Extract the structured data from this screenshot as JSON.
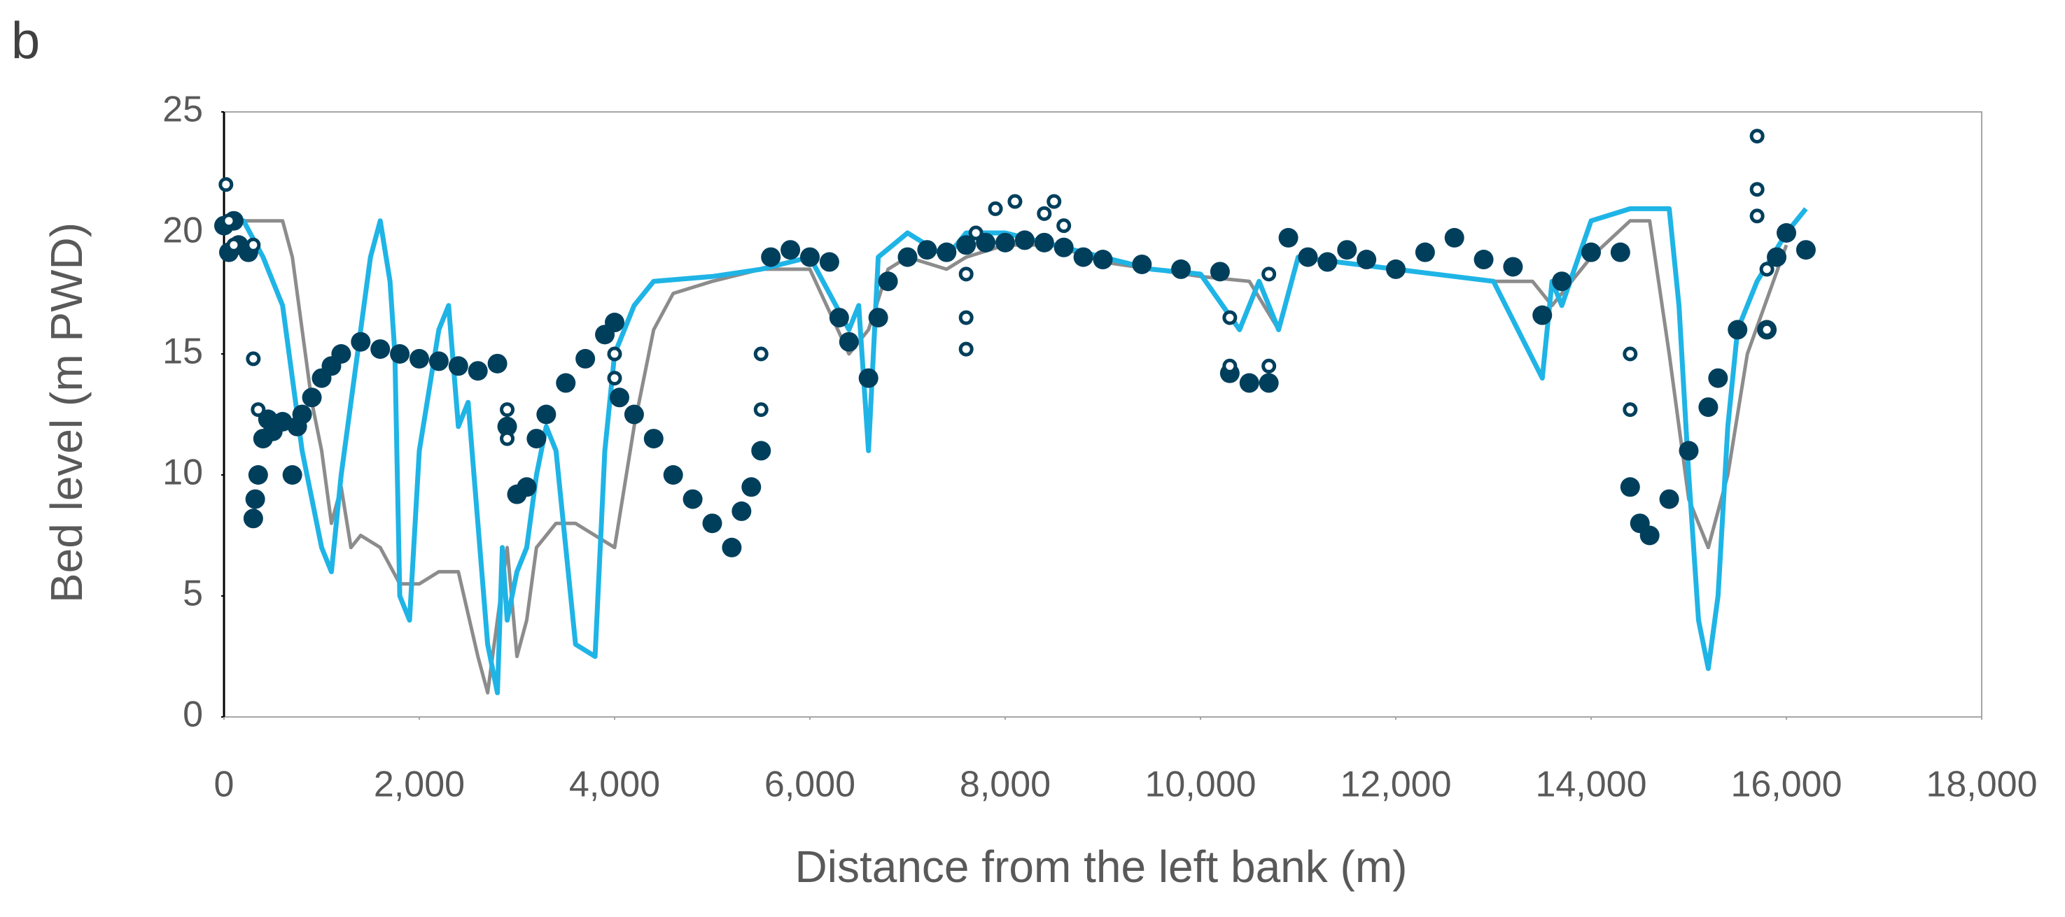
{
  "chart_data": {
    "type": "line",
    "panel_label": "b",
    "xlabel": "Distance from the left bank (m)",
    "ylabel": "Bed level (m PWD)",
    "xlim": [
      0,
      18000
    ],
    "ylim": [
      0,
      25
    ],
    "xticks": [
      0,
      {
        "value": 2000,
        "label": "2,000"
      },
      {
        "value": 4000,
        "label": "4,000"
      },
      {
        "value": 6000,
        "label": "6,000"
      },
      {
        "value": 8000,
        "label": "8,000"
      },
      {
        "value": 10000,
        "label": "10,000"
      },
      {
        "value": 12000,
        "label": "12,000"
      },
      {
        "value": 14000,
        "label": "14,000"
      },
      {
        "value": 16000,
        "label": "16,000"
      },
      {
        "value": 18000,
        "label": "18,000"
      }
    ],
    "yticks": [
      0,
      5,
      10,
      15,
      20,
      25
    ],
    "series": [
      {
        "color": "#8c8c8c",
        "mode": "line",
        "x": [
          0,
          200,
          400,
          600,
          700,
          800,
          900,
          1000,
          1100,
          1200,
          1300,
          1400,
          1600,
          1800,
          2000,
          2200,
          2400,
          2600,
          2700,
          2800,
          2900,
          3000,
          3100,
          3200,
          3400,
          3600,
          3800,
          4000,
          4200,
          4400,
          4600,
          5000,
          5500,
          6000,
          6400,
          6600,
          6800,
          7000,
          7400,
          7600,
          8000,
          8500,
          9000,
          9500,
          10000,
          10500,
          10800,
          11000,
          12000,
          13000,
          13400,
          13600,
          14000,
          14400,
          14600,
          14800,
          15000,
          15200,
          15400,
          15600,
          16000
        ],
        "values": [
          20.5,
          20.5,
          20.5,
          20.5,
          19,
          16,
          13,
          11,
          8,
          9.5,
          7,
          7.5,
          7,
          5.5,
          5.5,
          6,
          6,
          2.5,
          1,
          4,
          7,
          2.5,
          4,
          7,
          8,
          8,
          7.5,
          7,
          12,
          16,
          17.5,
          18,
          18.5,
          18.5,
          15,
          16,
          18.5,
          19,
          18.5,
          19,
          19.5,
          19.5,
          18.8,
          18.5,
          18.2,
          18,
          16,
          19,
          18.5,
          18,
          18,
          17,
          19,
          20.5,
          20.5,
          15,
          9,
          7,
          10,
          15,
          19.5
        ]
      },
      {
        "color": "#1fb4e6",
        "mode": "line",
        "x": [
          0,
          200,
          400,
          600,
          700,
          800,
          900,
          1000,
          1100,
          1200,
          1300,
          1400,
          1500,
          1600,
          1700,
          1750,
          1800,
          1900,
          2000,
          2200,
          2300,
          2400,
          2500,
          2600,
          2700,
          2800,
          2850,
          2900,
          3000,
          3100,
          3200,
          3300,
          3400,
          3500,
          3600,
          3800,
          3900,
          4000,
          4200,
          4400,
          5000,
          5500,
          6000,
          6400,
          6500,
          6600,
          6700,
          7000,
          7400,
          7600,
          8000,
          8500,
          9000,
          9500,
          10000,
          10400,
          10600,
          10800,
          11000,
          12000,
          13000,
          13500,
          13600,
          13700,
          14000,
          14400,
          14600,
          14800,
          14900,
          15000,
          15100,
          15200,
          15300,
          15400,
          15500,
          15600,
          15700,
          16000,
          16200
        ],
        "values": [
          20.5,
          20.5,
          19,
          17,
          14,
          11,
          9,
          7,
          6,
          10,
          13,
          16,
          19,
          20.5,
          18,
          15,
          5,
          4,
          11,
          16,
          17,
          12,
          13,
          8,
          3,
          1,
          7,
          4,
          6,
          7,
          10,
          12,
          11,
          7,
          3,
          2.5,
          11,
          15,
          17,
          18,
          18.2,
          18.5,
          19,
          16,
          17,
          11,
          19,
          20,
          19,
          20,
          20,
          19.5,
          19,
          18.5,
          18.3,
          16,
          18,
          16,
          19,
          18.5,
          18,
          14,
          18,
          17,
          20.5,
          21,
          21,
          21,
          17,
          10,
          4,
          2,
          5,
          12,
          16,
          17,
          18,
          20,
          21
        ]
      },
      {
        "color": "#003f5c",
        "mode": "filled",
        "x": [
          0,
          50,
          100,
          150,
          250,
          300,
          320,
          350,
          400,
          450,
          500,
          600,
          700,
          750,
          800,
          900,
          1000,
          1100,
          1200,
          1400,
          1600,
          1800,
          2000,
          2200,
          2400,
          2600,
          2800,
          2900,
          3000,
          3100,
          3200,
          3300,
          3500,
          3700,
          3900,
          4000,
          4050,
          4200,
          4400,
          4600,
          4800,
          5000,
          5200,
          5300,
          5400,
          5500,
          5600,
          5800,
          6000,
          6200,
          6300,
          6400,
          6600,
          6700,
          6800,
          7000,
          7200,
          7400,
          7600,
          7800,
          8000,
          8200,
          8400,
          8600,
          8800,
          9000,
          9400,
          9800,
          10200,
          10300,
          10500,
          10700,
          10900,
          11100,
          11300,
          11500,
          11700,
          12000,
          12300,
          12600,
          12900,
          13200,
          13500,
          13700,
          14000,
          14300,
          14400,
          14500,
          14600,
          14800,
          15000,
          15200,
          15300,
          15500,
          15800,
          15900,
          16000,
          16200
        ],
        "values": [
          20.3,
          19.2,
          20.5,
          19.5,
          19.2,
          8.2,
          9,
          10,
          11.5,
          12.3,
          11.8,
          12.2,
          10,
          12,
          12.5,
          13.2,
          14,
          14.5,
          15,
          15.5,
          15.2,
          15,
          14.8,
          14.7,
          14.5,
          14.3,
          14.6,
          12,
          9.2,
          9.5,
          11.5,
          12.5,
          13.8,
          14.8,
          15.8,
          16.3,
          13.2,
          12.5,
          11.5,
          10,
          9,
          8,
          7,
          8.5,
          9.5,
          11,
          19,
          19.3,
          19,
          18.8,
          16.5,
          15.5,
          14,
          16.5,
          18,
          19,
          19.3,
          19.2,
          19.5,
          19.6,
          19.6,
          19.7,
          19.6,
          19.4,
          19,
          18.9,
          18.7,
          18.5,
          18.4,
          14.2,
          13.8,
          13.8,
          19.8,
          19,
          18.8,
          19.3,
          18.9,
          18.5,
          19.2,
          19.8,
          18.9,
          18.6,
          16.6,
          18,
          19.2,
          19.2,
          9.5,
          8,
          7.5,
          9,
          11,
          12.8,
          14,
          16,
          16,
          19,
          20,
          19.3
        ]
      },
      {
        "color": "#003f5c",
        "mode": "hollow",
        "x": [
          20,
          50,
          100,
          300,
          350,
          300,
          2900,
          2900,
          4000,
          4000,
          5500,
          5500,
          7600,
          7600,
          7600,
          7700,
          7900,
          8100,
          8400,
          8500,
          8600,
          10300,
          10300,
          10700,
          10700,
          14400,
          14400,
          15700,
          15700,
          15700,
          15800,
          15800
        ],
        "values": [
          22,
          20.5,
          19.5,
          14.8,
          12.7,
          19.5,
          12.7,
          11.5,
          15,
          14,
          15,
          12.7,
          18.3,
          16.5,
          15.2,
          20,
          21,
          21.3,
          20.8,
          21.3,
          20.3,
          16.5,
          14.5,
          14.5,
          18.3,
          15,
          12.7,
          24,
          21.8,
          20.7,
          18.5,
          16
        ]
      }
    ]
  }
}
